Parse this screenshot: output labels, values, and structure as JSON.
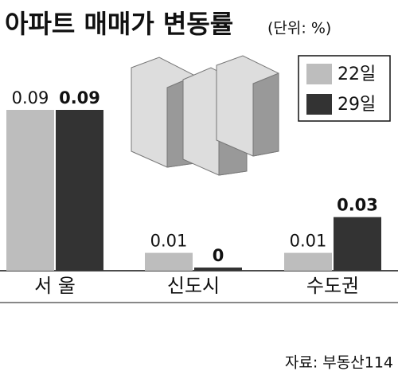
{
  "chart_data": {
    "type": "bar",
    "title": "아파트 매매가 변동률",
    "subtitle": "(단위: %)",
    "categories": [
      "서 울",
      "신도시",
      "수도권"
    ],
    "series": [
      {
        "name": "22일",
        "color": "#bdbdbd",
        "values": [
          0.09,
          0.01,
          0.01
        ]
      },
      {
        "name": "29일",
        "color": "#333333",
        "values": [
          0.09,
          0,
          0.03
        ]
      }
    ],
    "source": "자료: 부동산114"
  }
}
